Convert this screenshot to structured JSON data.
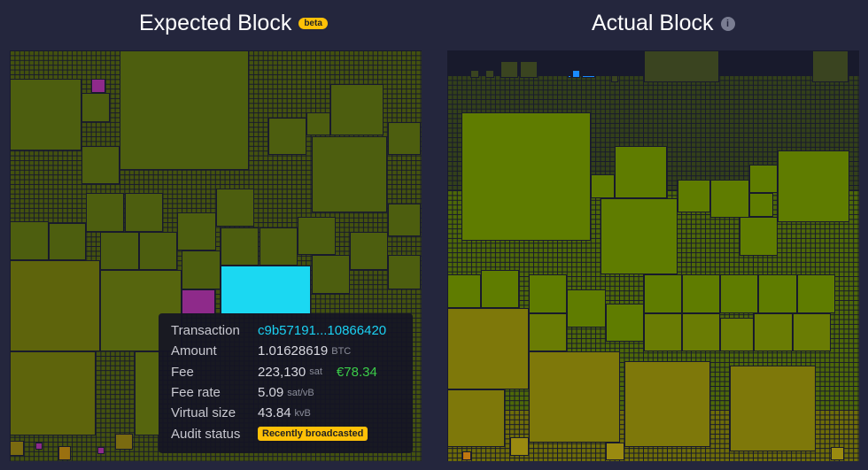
{
  "expected": {
    "title": "Expected Block",
    "badge": "beta"
  },
  "actual": {
    "title": "Actual Block",
    "info_icon": "info-icon"
  },
  "tooltip": {
    "transaction_label": "Transaction",
    "transaction": "c9b57191...10866420",
    "amount_label": "Amount",
    "amount": "1.01628619",
    "amount_unit": "BTC",
    "fee_label": "Fee",
    "fee": "223,130",
    "fee_unit": "sat",
    "fee_fiat": "€78.34",
    "fee_rate_label": "Fee rate",
    "fee_rate": "5.09",
    "fee_rate_unit": "sat/vB",
    "vsize_label": "Virtual size",
    "vsize": "43.84",
    "vsize_unit": "kvB",
    "audit_label": "Audit status",
    "audit": "Recently broadcasted"
  },
  "colors": {
    "highlight": "#1bd8f2",
    "added": "#8e2a8a",
    "olive": "#4d5e0f",
    "actual_olive": "#5f7c00",
    "yellow": "#8a7a0a",
    "badge": "#ffc107",
    "fiat": "#3bcc49"
  }
}
